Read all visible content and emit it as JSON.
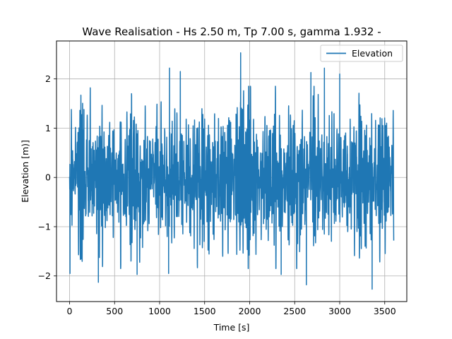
{
  "chart_data": {
    "type": "line",
    "title": "Wave Realisation - Hs 2.50 m, Tp 7.00 s, gamma 1.932 -",
    "xlabel": "Time [s]",
    "ylabel": "Elevation [m)]",
    "xlim": [
      -145,
      3745
    ],
    "ylim": [
      -2.52,
      2.77
    ],
    "xticks": [
      0,
      500,
      1000,
      1500,
      2000,
      2500,
      3000,
      3500
    ],
    "yticks": [
      -2,
      -1,
      0,
      1,
      2
    ],
    "grid": true,
    "legend": {
      "position": "top-right"
    },
    "series": [
      {
        "name": "Elevation",
        "color": "#1f77b4",
        "x_range": [
          0,
          3600
        ],
        "sample_step": 1,
        "rms": 0.625,
        "extremes": [
          {
            "x": 5,
            "y": -1.95
          },
          {
            "x": 20,
            "y": 1.38
          },
          {
            "x": 160,
            "y": 1.38
          },
          {
            "x": 320,
            "y": -2.13
          },
          {
            "x": 750,
            "y": -1.97
          },
          {
            "x": 1100,
            "y": -1.95
          },
          {
            "x": 1110,
            "y": 2.22
          },
          {
            "x": 1230,
            "y": 2.15
          },
          {
            "x": 1900,
            "y": 2.53
          },
          {
            "x": 2350,
            "y": -1.97
          },
          {
            "x": 2630,
            "y": -2.18
          },
          {
            "x": 2680,
            "y": 2.13
          },
          {
            "x": 2830,
            "y": 2.22
          },
          {
            "x": 3000,
            "y": 2.1
          },
          {
            "x": 3360,
            "y": -2.27
          }
        ]
      }
    ]
  }
}
